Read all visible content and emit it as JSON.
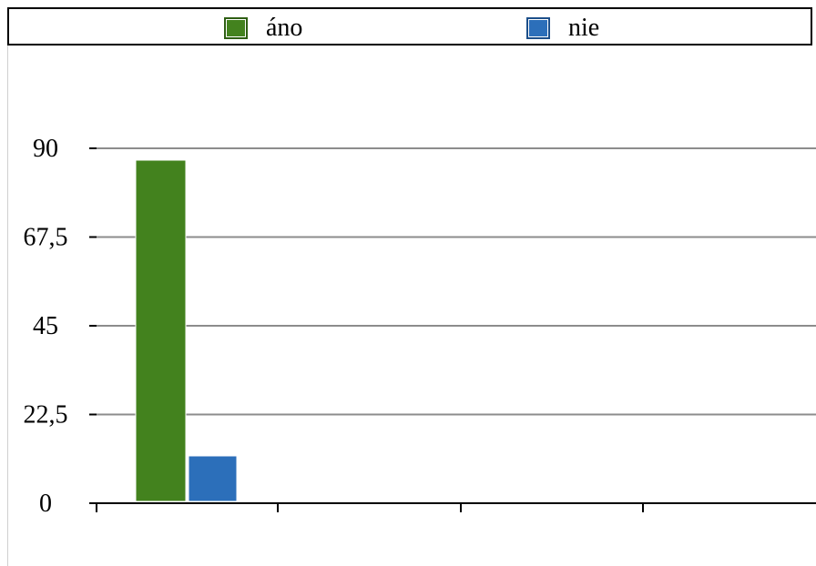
{
  "chart_data": {
    "type": "bar",
    "categories": [
      ""
    ],
    "series": [
      {
        "name": "áno",
        "values": [
          87
        ],
        "color": "#43821e"
      },
      {
        "name": "nie",
        "values": [
          12
        ],
        "color": "#2c6fba"
      }
    ],
    "ylim": [
      0,
      90
    ],
    "yticks": [
      "0",
      "22,5",
      "45",
      "67,5",
      "90"
    ],
    "ytick_values": [
      0,
      22.5,
      45,
      67.5,
      90
    ],
    "xlabel": "",
    "ylabel": "",
    "grid": true,
    "legend_position": "top"
  }
}
